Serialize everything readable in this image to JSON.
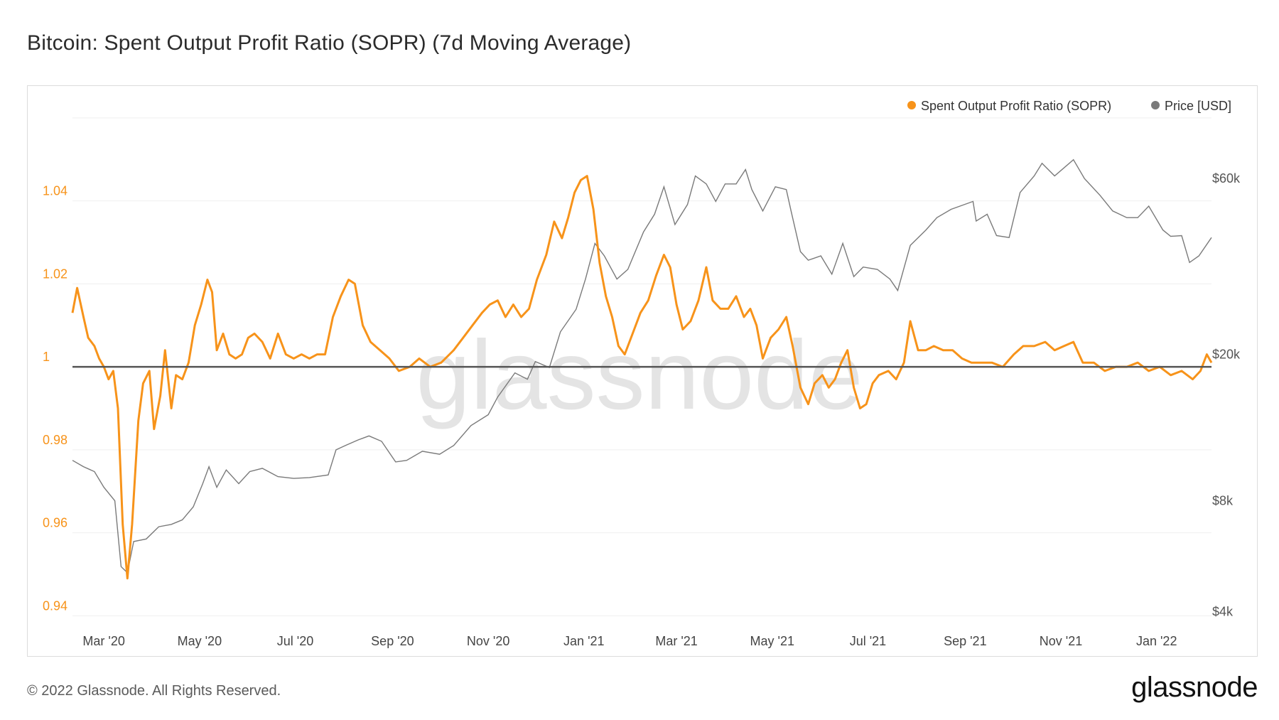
{
  "title": "Bitcoin: Spent Output Profit Ratio (SOPR) (7d Moving Average)",
  "footer": {
    "copyright": "© 2022 Glassnode. All Rights Reserved.",
    "brand": "glassnode"
  },
  "watermark": "glassnode",
  "colors": {
    "sopr": "#F7931A",
    "price": "#7a7a7a",
    "baseline": "#555555",
    "grid": "#efefef"
  },
  "chart_data": {
    "type": "line",
    "title": "Bitcoin: Spent Output Profit Ratio (SOPR) (7d Moving Average)",
    "legend": {
      "placement": "top-right",
      "entries": [
        "Spent Output Profit Ratio (SOPR)",
        "Price [USD]"
      ]
    },
    "x_ticks": [
      {
        "date": "2020-03-01",
        "label": "Mar '20"
      },
      {
        "date": "2020-05-01",
        "label": "May '20"
      },
      {
        "date": "2020-07-01",
        "label": "Jul '20"
      },
      {
        "date": "2020-09-01",
        "label": "Sep '20"
      },
      {
        "date": "2020-11-01",
        "label": "Nov '20"
      },
      {
        "date": "2021-01-01",
        "label": "Jan '21"
      },
      {
        "date": "2021-03-01",
        "label": "Mar '21"
      },
      {
        "date": "2021-05-01",
        "label": "May '21"
      },
      {
        "date": "2021-07-01",
        "label": "Jul '21"
      },
      {
        "date": "2021-09-01",
        "label": "Sep '21"
      },
      {
        "date": "2021-11-01",
        "label": "Nov '21"
      },
      {
        "date": "2022-01-01",
        "label": "Jan '22"
      }
    ],
    "x_range": [
      "2020-02-10",
      "2022-02-05"
    ],
    "y_left": {
      "ticks": [
        0.94,
        0.96,
        0.98,
        1,
        1.02,
        1.04
      ],
      "labels": [
        "0.94",
        "0.96",
        "0.98",
        "1",
        "1.02",
        "1.04"
      ],
      "range": [
        0.938,
        1.061
      ]
    },
    "y_right": {
      "scale": "log",
      "ticks": [
        4000,
        8000,
        20000,
        60000
      ],
      "labels": [
        "$4k",
        "$8k",
        "$20k",
        "$60k"
      ],
      "range": [
        3700,
        90000
      ]
    },
    "baseline": 1,
    "series": [
      {
        "name": "Spent Output Profit Ratio (SOPR)",
        "axis": "left",
        "points": [
          [
            "2020-02-10",
            1.013
          ],
          [
            "2020-02-13",
            1.019
          ],
          [
            "2020-02-17",
            1.012
          ],
          [
            "2020-02-20",
            1.007
          ],
          [
            "2020-02-24",
            1.005
          ],
          [
            "2020-02-27",
            1.002
          ],
          [
            "2020-03-01",
            1.0
          ],
          [
            "2020-03-04",
            0.997
          ],
          [
            "2020-03-07",
            0.999
          ],
          [
            "2020-03-10",
            0.99
          ],
          [
            "2020-03-13",
            0.962
          ],
          [
            "2020-03-16",
            0.949
          ],
          [
            "2020-03-19",
            0.962
          ],
          [
            "2020-03-23",
            0.987
          ],
          [
            "2020-03-26",
            0.996
          ],
          [
            "2020-03-30",
            0.999
          ],
          [
            "2020-04-02",
            0.985
          ],
          [
            "2020-04-06",
            0.993
          ],
          [
            "2020-04-09",
            1.004
          ],
          [
            "2020-04-13",
            0.99
          ],
          [
            "2020-04-16",
            0.998
          ],
          [
            "2020-04-20",
            0.997
          ],
          [
            "2020-04-24",
            1.001
          ],
          [
            "2020-04-28",
            1.01
          ],
          [
            "2020-05-02",
            1.015
          ],
          [
            "2020-05-06",
            1.021
          ],
          [
            "2020-05-09",
            1.018
          ],
          [
            "2020-05-12",
            1.004
          ],
          [
            "2020-05-16",
            1.008
          ],
          [
            "2020-05-20",
            1.003
          ],
          [
            "2020-05-24",
            1.002
          ],
          [
            "2020-05-28",
            1.003
          ],
          [
            "2020-06-01",
            1.007
          ],
          [
            "2020-06-05",
            1.008
          ],
          [
            "2020-06-10",
            1.006
          ],
          [
            "2020-06-15",
            1.002
          ],
          [
            "2020-06-20",
            1.008
          ],
          [
            "2020-06-25",
            1.003
          ],
          [
            "2020-06-30",
            1.002
          ],
          [
            "2020-07-05",
            1.003
          ],
          [
            "2020-07-10",
            1.002
          ],
          [
            "2020-07-15",
            1.003
          ],
          [
            "2020-07-20",
            1.003
          ],
          [
            "2020-07-25",
            1.012
          ],
          [
            "2020-07-30",
            1.017
          ],
          [
            "2020-08-04",
            1.021
          ],
          [
            "2020-08-08",
            1.02
          ],
          [
            "2020-08-13",
            1.01
          ],
          [
            "2020-08-18",
            1.006
          ],
          [
            "2020-08-24",
            1.004
          ],
          [
            "2020-08-30",
            1.002
          ],
          [
            "2020-09-05",
            0.999
          ],
          [
            "2020-09-12",
            1.0
          ],
          [
            "2020-09-18",
            1.002
          ],
          [
            "2020-09-25",
            1.0
          ],
          [
            "2020-10-02",
            1.001
          ],
          [
            "2020-10-10",
            1.004
          ],
          [
            "2020-10-16",
            1.007
          ],
          [
            "2020-10-22",
            1.01
          ],
          [
            "2020-10-28",
            1.013
          ],
          [
            "2020-11-02",
            1.015
          ],
          [
            "2020-11-07",
            1.016
          ],
          [
            "2020-11-12",
            1.012
          ],
          [
            "2020-11-17",
            1.015
          ],
          [
            "2020-11-22",
            1.012
          ],
          [
            "2020-11-27",
            1.014
          ],
          [
            "2020-12-02",
            1.021
          ],
          [
            "2020-12-08",
            1.027
          ],
          [
            "2020-12-13",
            1.035
          ],
          [
            "2020-12-18",
            1.031
          ],
          [
            "2020-12-22",
            1.036
          ],
          [
            "2020-12-26",
            1.042
          ],
          [
            "2020-12-30",
            1.045
          ],
          [
            "2021-01-03",
            1.046
          ],
          [
            "2021-01-07",
            1.038
          ],
          [
            "2021-01-11",
            1.025
          ],
          [
            "2021-01-15",
            1.017
          ],
          [
            "2021-01-19",
            1.012
          ],
          [
            "2021-01-23",
            1.005
          ],
          [
            "2021-01-27",
            1.003
          ],
          [
            "2021-02-01",
            1.008
          ],
          [
            "2021-02-06",
            1.013
          ],
          [
            "2021-02-11",
            1.016
          ],
          [
            "2021-02-16",
            1.022
          ],
          [
            "2021-02-21",
            1.027
          ],
          [
            "2021-02-25",
            1.024
          ],
          [
            "2021-03-01",
            1.015
          ],
          [
            "2021-03-05",
            1.009
          ],
          [
            "2021-03-10",
            1.011
          ],
          [
            "2021-03-15",
            1.016
          ],
          [
            "2021-03-20",
            1.024
          ],
          [
            "2021-03-24",
            1.016
          ],
          [
            "2021-03-29",
            1.014
          ],
          [
            "2021-04-03",
            1.014
          ],
          [
            "2021-04-08",
            1.017
          ],
          [
            "2021-04-13",
            1.012
          ],
          [
            "2021-04-17",
            1.014
          ],
          [
            "2021-04-21",
            1.01
          ],
          [
            "2021-04-25",
            1.002
          ],
          [
            "2021-04-30",
            1.007
          ],
          [
            "2021-05-05",
            1.009
          ],
          [
            "2021-05-10",
            1.012
          ],
          [
            "2021-05-14",
            1.005
          ],
          [
            "2021-05-19",
            0.995
          ],
          [
            "2021-05-24",
            0.991
          ],
          [
            "2021-05-28",
            0.996
          ],
          [
            "2021-06-02",
            0.998
          ],
          [
            "2021-06-06",
            0.995
          ],
          [
            "2021-06-10",
            0.997
          ],
          [
            "2021-06-14",
            1.001
          ],
          [
            "2021-06-18",
            1.004
          ],
          [
            "2021-06-22",
            0.995
          ],
          [
            "2021-06-26",
            0.99
          ],
          [
            "2021-06-30",
            0.991
          ],
          [
            "2021-07-04",
            0.996
          ],
          [
            "2021-07-08",
            0.998
          ],
          [
            "2021-07-14",
            0.999
          ],
          [
            "2021-07-19",
            0.997
          ],
          [
            "2021-07-24",
            1.001
          ],
          [
            "2021-07-28",
            1.011
          ],
          [
            "2021-08-02",
            1.004
          ],
          [
            "2021-08-07",
            1.004
          ],
          [
            "2021-08-12",
            1.005
          ],
          [
            "2021-08-18",
            1.004
          ],
          [
            "2021-08-24",
            1.004
          ],
          [
            "2021-08-30",
            1.002
          ],
          [
            "2021-09-05",
            1.001
          ],
          [
            "2021-09-11",
            1.001
          ],
          [
            "2021-09-18",
            1.001
          ],
          [
            "2021-09-25",
            1.0
          ],
          [
            "2021-10-02",
            1.003
          ],
          [
            "2021-10-08",
            1.005
          ],
          [
            "2021-10-15",
            1.005
          ],
          [
            "2021-10-22",
            1.006
          ],
          [
            "2021-10-28",
            1.004
          ],
          [
            "2021-11-03",
            1.005
          ],
          [
            "2021-11-09",
            1.006
          ],
          [
            "2021-11-15",
            1.001
          ],
          [
            "2021-11-22",
            1.001
          ],
          [
            "2021-11-29",
            0.999
          ],
          [
            "2021-12-06",
            1.0
          ],
          [
            "2021-12-13",
            1.0
          ],
          [
            "2021-12-20",
            1.001
          ],
          [
            "2021-12-27",
            0.999
          ],
          [
            "2022-01-03",
            1.0
          ],
          [
            "2022-01-10",
            0.998
          ],
          [
            "2022-01-17",
            0.999
          ],
          [
            "2022-01-24",
            0.997
          ],
          [
            "2022-01-29",
            0.999
          ],
          [
            "2022-02-02",
            1.003
          ],
          [
            "2022-02-05",
            1.001
          ]
        ]
      },
      {
        "name": "Price [USD]",
        "axis": "right",
        "points": [
          [
            "2020-02-10",
            10300
          ],
          [
            "2020-02-17",
            9900
          ],
          [
            "2020-02-24",
            9600
          ],
          [
            "2020-03-01",
            8700
          ],
          [
            "2020-03-08",
            8000
          ],
          [
            "2020-03-12",
            5300
          ],
          [
            "2020-03-16",
            5100
          ],
          [
            "2020-03-20",
            6200
          ],
          [
            "2020-03-28",
            6300
          ],
          [
            "2020-04-05",
            6800
          ],
          [
            "2020-04-13",
            6900
          ],
          [
            "2020-04-20",
            7100
          ],
          [
            "2020-04-27",
            7700
          ],
          [
            "2020-05-03",
            8900
          ],
          [
            "2020-05-07",
            9900
          ],
          [
            "2020-05-12",
            8700
          ],
          [
            "2020-05-18",
            9700
          ],
          [
            "2020-05-26",
            8900
          ],
          [
            "2020-06-02",
            9600
          ],
          [
            "2020-06-10",
            9800
          ],
          [
            "2020-06-20",
            9300
          ],
          [
            "2020-06-30",
            9200
          ],
          [
            "2020-07-10",
            9250
          ],
          [
            "2020-07-22",
            9400
          ],
          [
            "2020-07-27",
            11000
          ],
          [
            "2020-08-02",
            11300
          ],
          [
            "2020-08-10",
            11700
          ],
          [
            "2020-08-17",
            12000
          ],
          [
            "2020-08-25",
            11600
          ],
          [
            "2020-09-03",
            10200
          ],
          [
            "2020-09-10",
            10300
          ],
          [
            "2020-09-20",
            10900
          ],
          [
            "2020-10-01",
            10700
          ],
          [
            "2020-10-10",
            11300
          ],
          [
            "2020-10-21",
            12800
          ],
          [
            "2020-11-01",
            13700
          ],
          [
            "2020-11-07",
            15300
          ],
          [
            "2020-11-18",
            17800
          ],
          [
            "2020-11-26",
            17100
          ],
          [
            "2020-12-01",
            19100
          ],
          [
            "2020-12-10",
            18400
          ],
          [
            "2020-12-17",
            23000
          ],
          [
            "2020-12-27",
            26500
          ],
          [
            "2021-01-02",
            32000
          ],
          [
            "2021-01-08",
            40000
          ],
          [
            "2021-01-14",
            37000
          ],
          [
            "2021-01-22",
            32000
          ],
          [
            "2021-01-29",
            34000
          ],
          [
            "2021-02-08",
            43000
          ],
          [
            "2021-02-15",
            48000
          ],
          [
            "2021-02-21",
            57000
          ],
          [
            "2021-02-28",
            45000
          ],
          [
            "2021-03-08",
            51000
          ],
          [
            "2021-03-13",
            61000
          ],
          [
            "2021-03-20",
            58000
          ],
          [
            "2021-03-26",
            52000
          ],
          [
            "2021-04-01",
            58000
          ],
          [
            "2021-04-08",
            58000
          ],
          [
            "2021-04-14",
            63500
          ],
          [
            "2021-04-18",
            56000
          ],
          [
            "2021-04-25",
            49000
          ],
          [
            "2021-05-03",
            57000
          ],
          [
            "2021-05-10",
            56000
          ],
          [
            "2021-05-13",
            49000
          ],
          [
            "2021-05-19",
            38000
          ],
          [
            "2021-05-24",
            36000
          ],
          [
            "2021-06-01",
            37000
          ],
          [
            "2021-06-08",
            33000
          ],
          [
            "2021-06-15",
            40000
          ],
          [
            "2021-06-22",
            32500
          ],
          [
            "2021-06-28",
            34500
          ],
          [
            "2021-07-07",
            34000
          ],
          [
            "2021-07-15",
            32000
          ],
          [
            "2021-07-20",
            29800
          ],
          [
            "2021-07-28",
            39500
          ],
          [
            "2021-08-07",
            43500
          ],
          [
            "2021-08-14",
            47000
          ],
          [
            "2021-08-23",
            49500
          ],
          [
            "2021-09-06",
            52000
          ],
          [
            "2021-09-08",
            46000
          ],
          [
            "2021-09-15",
            48000
          ],
          [
            "2021-09-21",
            42000
          ],
          [
            "2021-09-29",
            41500
          ],
          [
            "2021-10-06",
            55000
          ],
          [
            "2021-10-15",
            61000
          ],
          [
            "2021-10-20",
            66000
          ],
          [
            "2021-10-28",
            61000
          ],
          [
            "2021-11-09",
            67500
          ],
          [
            "2021-11-16",
            60000
          ],
          [
            "2021-11-26",
            54000
          ],
          [
            "2021-12-04",
            49000
          ],
          [
            "2021-12-13",
            47000
          ],
          [
            "2021-12-20",
            47000
          ],
          [
            "2021-12-27",
            50500
          ],
          [
            "2022-01-05",
            43500
          ],
          [
            "2022-01-10",
            41800
          ],
          [
            "2022-01-17",
            42000
          ],
          [
            "2022-01-22",
            35500
          ],
          [
            "2022-01-28",
            37000
          ],
          [
            "2022-02-05",
            41500
          ]
        ]
      }
    ]
  }
}
